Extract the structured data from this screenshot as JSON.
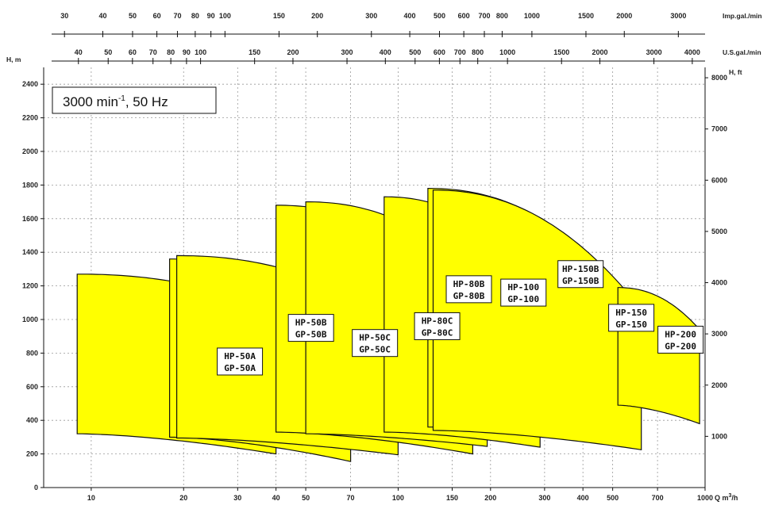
{
  "chart_data": {
    "type": "area",
    "speed_note": {
      "prefix": "3000 min",
      "superscript": "-1",
      "suffix": ", 50 Hz"
    },
    "x_axis": {
      "unit": "Q m³/h",
      "unit_text_main": "Q m",
      "unit_text_sup": "3",
      "unit_text_tail": "/h",
      "scale": "log",
      "range": [
        7,
        1000
      ],
      "ticks": [
        10,
        20,
        30,
        40,
        50,
        70,
        100,
        150,
        200,
        300,
        400,
        500,
        700,
        1000
      ],
      "tick_labels": [
        "10",
        "20",
        "30",
        "40",
        "50",
        "70",
        "100",
        "150",
        "200",
        "300",
        "400",
        "500",
        "700",
        "1000"
      ]
    },
    "y_axis_left": {
      "unit": "H, m",
      "range": [
        0,
        2500
      ],
      "ticks": [
        0,
        200,
        400,
        600,
        800,
        1000,
        1200,
        1400,
        1600,
        1800,
        2000,
        2200,
        2400
      ],
      "tick_labels": [
        "0",
        "200",
        "400",
        "600",
        "800",
        "1000",
        "1200",
        "1400",
        "1600",
        "1800",
        "2000",
        "2200",
        "2400"
      ]
    },
    "y_axis_right": {
      "unit": "H, ft",
      "ticks": [
        1000,
        2000,
        3000,
        4000,
        5000,
        6000,
        7000,
        8000
      ],
      "tick_labels": [
        "1000",
        "2000",
        "3000",
        "4000",
        "5000",
        "6000",
        "7000",
        "8000"
      ]
    },
    "top_axis_imp": {
      "unit": "Imp.gal./min",
      "ticks": [
        30,
        40,
        50,
        60,
        70,
        80,
        90,
        100,
        150,
        200,
        300,
        400,
        500,
        600,
        700,
        800,
        1000,
        1500,
        2000,
        3000
      ],
      "tick_labels": [
        "30",
        "40",
        "50",
        "60",
        "70",
        "80",
        "90",
        "100",
        "150",
        "200",
        "300",
        "400",
        "500",
        "600",
        "700",
        "800",
        "1000",
        "1500",
        "2000",
        "3000"
      ]
    },
    "top_axis_us": {
      "unit": "U.S.gal./min",
      "ticks": [
        40,
        50,
        60,
        70,
        80,
        90,
        100,
        150,
        200,
        300,
        400,
        500,
        600,
        700,
        800,
        1000,
        1500,
        2000,
        3000,
        4000
      ],
      "tick_labels": [
        "40",
        "50",
        "60",
        "70",
        "80",
        "90",
        "100",
        "150",
        "200",
        "300",
        "400",
        "500",
        "600",
        "700",
        "800",
        "1000",
        "1500",
        "2000",
        "3000",
        "4000"
      ]
    },
    "series": [
      {
        "name": "HP-50A",
        "label_lines": [
          "HP-50A",
          "GP-50A"
        ],
        "q_min": 9,
        "q_max": 40,
        "h_top_left": 1270,
        "h_top_right": 1050,
        "h_bot_left": 320,
        "h_bot_right": 200,
        "label_q": 30.5,
        "label_h": 750
      },
      {
        "name": "HP-50B",
        "label_lines": [
          "HP-50B",
          "GP-50B"
        ],
        "q_min": 18,
        "q_max": 70,
        "h_top_left": 1360,
        "h_top_right": 1030,
        "h_bot_left": 300,
        "h_bot_right": 155,
        "label_q": 52,
        "label_h": 950
      },
      {
        "name": "HP-50C",
        "label_lines": [
          "HP-50C",
          "GP-50C"
        ],
        "q_min": 19,
        "q_max": 100,
        "h_top_left": 1380,
        "h_top_right": 990,
        "h_bot_left": 295,
        "h_bot_right": 195,
        "label_q": 84,
        "label_h": 860
      },
      {
        "name": "HP-80C",
        "label_lines": [
          "HP-80C",
          "GP-80C"
        ],
        "q_min": 40,
        "q_max": 175,
        "h_top_left": 1680,
        "h_top_right": 1100,
        "h_bot_left": 330,
        "h_bot_right": 200,
        "label_q": 134,
        "label_h": 960
      },
      {
        "name": "HP-80B",
        "label_lines": [
          "HP-80B",
          "GP-80B"
        ],
        "q_min": 50,
        "q_max": 195,
        "h_top_left": 1700,
        "h_top_right": 1210,
        "h_bot_left": 320,
        "h_bot_right": 245,
        "label_q": 170,
        "label_h": 1180
      },
      {
        "name": "HP-100",
        "label_lines": [
          "HP-100",
          "GP-100"
        ],
        "q_min": 90,
        "q_max": 290,
        "h_top_left": 1730,
        "h_top_right": 1230,
        "h_bot_left": 330,
        "h_bot_right": 240,
        "label_q": 256,
        "label_h": 1160
      },
      {
        "name": "HP-150B",
        "label_lines": [
          "HP-150B",
          "GP-150B"
        ],
        "q_min": 125,
        "q_max": 490,
        "h_top_left": 1780,
        "h_top_right": 1270,
        "h_bot_left": 360,
        "h_bot_right": 330,
        "label_q": 393,
        "label_h": 1270
      },
      {
        "name": "HP-150",
        "label_lines": [
          "HP-150",
          "GP-150"
        ],
        "q_min": 130,
        "q_max": 620,
        "h_top_left": 1770,
        "h_top_right": 1060,
        "h_bot_left": 340,
        "h_bot_right": 225,
        "label_q": 575,
        "label_h": 1010
      },
      {
        "name": "HP-200",
        "label_lines": [
          "HP-200",
          "GP-200"
        ],
        "q_min": 520,
        "q_max": 960,
        "h_top_left": 1190,
        "h_top_right": 940,
        "h_bot_left": 490,
        "h_bot_right": 380,
        "label_q": 832,
        "label_h": 880
      }
    ]
  }
}
